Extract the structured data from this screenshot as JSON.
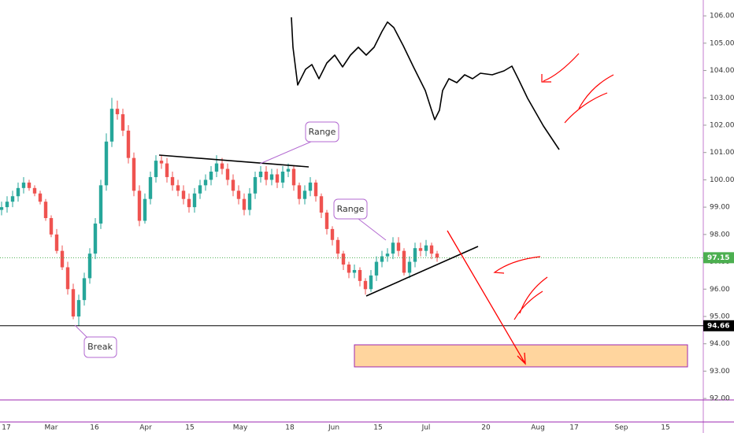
{
  "chart_data": {
    "type": "candlestick",
    "open": [
      98.9,
      99.0,
      99.2,
      99.4,
      99.7,
      99.9,
      99.7,
      99.5,
      99.2,
      98.6,
      98.0,
      97.4,
      96.8,
      96.0,
      95.0,
      95.6,
      96.4,
      97.3,
      98.4,
      99.8,
      101.4,
      102.6,
      102.4,
      101.8,
      100.8,
      99.6,
      98.5,
      99.3,
      100.1,
      100.7,
      100.6,
      100.1,
      99.8,
      99.6,
      99.3,
      99.0,
      99.5,
      99.8,
      100.0,
      100.3,
      100.6,
      100.4,
      100.0,
      99.6,
      99.3,
      98.9,
      99.5,
      100.1,
      100.3,
      100.0,
      100.2,
      99.9,
      100.3,
      100.4,
      99.8,
      99.3,
      99.6,
      99.9,
      99.4,
      98.8,
      98.2,
      97.8,
      97.3,
      96.9,
      96.6,
      96.7,
      96.3,
      96.0,
      96.5,
      97.0,
      97.2,
      97.3,
      97.7,
      97.4,
      96.6,
      97.0,
      97.5,
      97.4,
      97.6,
      97.3
    ],
    "high": [
      99.2,
      99.4,
      99.6,
      99.9,
      100.1,
      100.0,
      99.8,
      99.6,
      99.3,
      98.7,
      98.2,
      97.6,
      97.0,
      96.2,
      95.8,
      96.6,
      97.5,
      98.6,
      100.0,
      101.7,
      103.0,
      102.9,
      102.6,
      102.0,
      101.0,
      99.8,
      99.5,
      100.3,
      100.9,
      100.9,
      100.8,
      100.3,
      100.0,
      99.8,
      99.5,
      99.7,
      100.0,
      100.2,
      100.5,
      100.9,
      100.8,
      100.6,
      100.2,
      99.8,
      99.5,
      99.7,
      100.3,
      100.5,
      100.5,
      100.4,
      100.4,
      100.5,
      100.6,
      100.5,
      99.9,
      99.8,
      100.1,
      100.0,
      99.5,
      98.9,
      98.3,
      97.9,
      97.4,
      97.0,
      96.9,
      96.8,
      96.4,
      96.7,
      97.2,
      97.4,
      97.5,
      97.9,
      97.9,
      97.5,
      97.2,
      97.7,
      97.7,
      97.8,
      97.7,
      97.4
    ],
    "low": [
      98.7,
      98.8,
      99.0,
      99.2,
      99.5,
      99.6,
      99.4,
      99.1,
      98.5,
      97.9,
      97.3,
      96.7,
      95.8,
      94.9,
      94.66,
      95.4,
      96.2,
      97.1,
      98.2,
      99.6,
      101.2,
      102.2,
      101.6,
      100.6,
      99.4,
      98.3,
      98.4,
      99.1,
      99.9,
      100.4,
      99.9,
      99.6,
      99.4,
      99.1,
      98.8,
      98.8,
      99.3,
      99.6,
      99.8,
      100.1,
      100.2,
      99.8,
      99.4,
      99.1,
      98.7,
      98.7,
      99.3,
      99.9,
      99.8,
      99.8,
      99.7,
      99.7,
      100.1,
      99.6,
      99.1,
      99.1,
      99.4,
      99.2,
      98.6,
      98.0,
      97.6,
      97.1,
      96.7,
      96.4,
      96.4,
      96.1,
      95.8,
      95.9,
      96.3,
      96.8,
      97.0,
      97.1,
      97.2,
      96.5,
      96.4,
      96.8,
      97.2,
      97.2,
      97.1,
      97.0
    ],
    "close": [
      99.0,
      99.2,
      99.4,
      99.7,
      99.9,
      99.7,
      99.5,
      99.2,
      98.6,
      98.0,
      97.4,
      96.8,
      96.0,
      95.0,
      95.6,
      96.4,
      97.3,
      98.4,
      99.8,
      101.4,
      102.6,
      102.4,
      101.8,
      100.8,
      99.6,
      98.5,
      99.3,
      100.1,
      100.7,
      100.6,
      100.1,
      99.8,
      99.6,
      99.3,
      99.0,
      99.5,
      99.8,
      100.0,
      100.3,
      100.6,
      100.4,
      100.0,
      99.6,
      99.3,
      98.9,
      99.5,
      100.1,
      100.3,
      100.0,
      100.2,
      99.9,
      100.3,
      100.4,
      99.8,
      99.3,
      99.6,
      99.9,
      99.4,
      98.8,
      98.2,
      97.8,
      97.3,
      96.9,
      96.6,
      96.7,
      96.3,
      96.0,
      96.5,
      97.0,
      97.2,
      97.3,
      97.7,
      97.4,
      96.6,
      97.0,
      97.5,
      97.4,
      97.6,
      97.3,
      97.15
    ],
    "up_color": "#26a69a",
    "down_color": "#ef5350",
    "ylim": [
      91.6,
      106.58
    ],
    "yticks": [
      {
        "value": 106,
        "label": "106.00"
      },
      {
        "value": 105,
        "label": "105.00"
      },
      {
        "value": 104,
        "label": "104.00"
      },
      {
        "value": 103,
        "label": "103.00"
      },
      {
        "value": 102,
        "label": "102.00"
      },
      {
        "value": 101,
        "label": "101.00"
      },
      {
        "value": 100,
        "label": "100.00"
      },
      {
        "value": 99,
        "label": "99.00"
      },
      {
        "value": 98,
        "label": "98.00"
      },
      {
        "value": 97,
        "label": "97.00"
      },
      {
        "value": 96,
        "label": "96.00"
      },
      {
        "value": 95,
        "label": "95.00"
      },
      {
        "value": 94,
        "label": "94.00"
      },
      {
        "value": 93,
        "label": "93.00"
      },
      {
        "value": 92,
        "label": "92.00"
      }
    ],
    "xticks": [
      "17",
      "Mar",
      "16",
      "Apr",
      "15",
      "May",
      "18",
      "Jun",
      "15",
      "Jul",
      "20",
      "Aug",
      "17",
      "Sep",
      "15"
    ],
    "last_price": 97.15,
    "last_price_color": "#4caf50",
    "level": 94.66,
    "level_color": "#000000",
    "annotations": [
      "Range",
      "Range",
      "Break"
    ]
  }
}
